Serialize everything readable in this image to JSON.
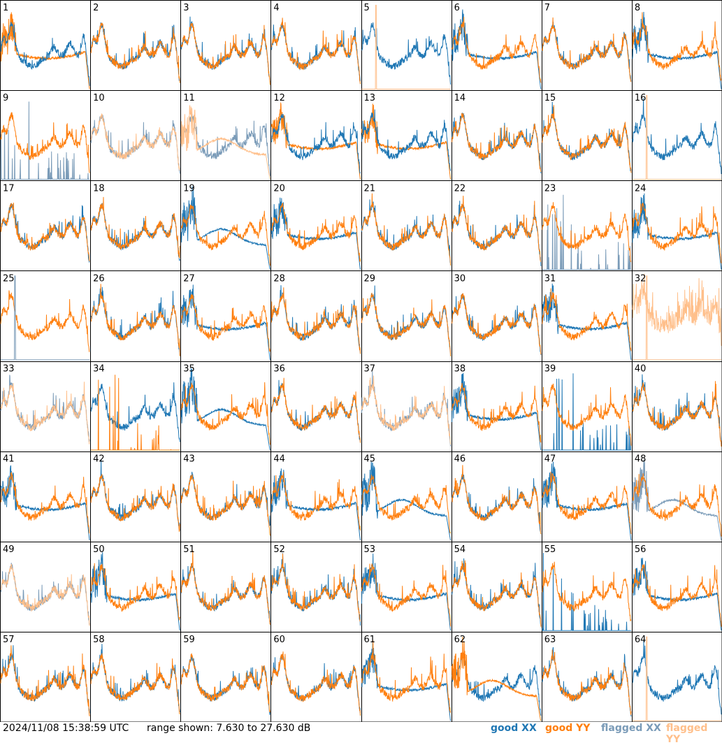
{
  "chart_data": {
    "type": "line",
    "layout": "8x8 grid of small-multiple spectra",
    "panels": [
      "1",
      "2",
      "3",
      "4",
      "5",
      "6",
      "7",
      "8",
      "9",
      "10",
      "11",
      "12",
      "13",
      "14",
      "15",
      "16",
      "17",
      "18",
      "19",
      "20",
      "21",
      "22",
      "23",
      "24",
      "25",
      "26",
      "27",
      "28",
      "29",
      "30",
      "31",
      "32",
      "33",
      "34",
      "35",
      "36",
      "37",
      "38",
      "39",
      "40",
      "41",
      "42",
      "43",
      "44",
      "45",
      "46",
      "47",
      "48",
      "49",
      "50",
      "51",
      "52",
      "53",
      "54",
      "55",
      "56",
      "57",
      "58",
      "59",
      "60",
      "61",
      "62",
      "63",
      "64"
    ],
    "y_units": "dB",
    "ylim": [
      7.63,
      27.63
    ],
    "series": [
      {
        "name": "good XX",
        "color": "#1f77b4"
      },
      {
        "name": "good YY",
        "color": "#ff7f0e"
      },
      {
        "name": "flagged XX",
        "color": "#7a9bb8"
      },
      {
        "name": "flagged YY",
        "color": "#ffbf8a"
      }
    ],
    "panel_profiles": {
      "1": "split-xx",
      "2": "normal",
      "3": "normal",
      "4": "normal",
      "5": "xx-only-spike",
      "6": "split-yy",
      "7": "normal",
      "8": "split-yy",
      "9": "yy-flagxx",
      "10": "flagged-both",
      "11": "flagged-split",
      "12": "split-xx",
      "13": "split-xx",
      "14": "normal",
      "15": "normal",
      "16": "xx-only-spike",
      "17": "normal",
      "18": "normal",
      "19": "split-xx-low",
      "20": "split-yy",
      "21": "normal",
      "22": "normal",
      "23": "yy-flagxx",
      "24": "split-yy",
      "25": "yy-only",
      "26": "normal",
      "27": "split-yy",
      "28": "normal",
      "29": "normal",
      "30": "normal",
      "31": "split-yy",
      "32": "flagged-yy-only",
      "33": "flagged-both",
      "34": "xx-yyspikes",
      "35": "split-xx-low",
      "36": "normal",
      "37": "flagged-both",
      "38": "split-yy-xx-drop",
      "39": "yy-xxspike",
      "40": "normal",
      "41": "split-yy",
      "42": "normal",
      "43": "normal",
      "44": "split-yy",
      "45": "split-xx-low",
      "46": "normal",
      "47": "split-yy",
      "48": "flagged-xx-yy",
      "49": "flagged-both",
      "50": "split-yy",
      "51": "normal",
      "52": "normal",
      "53": "split-yy",
      "54": "normal",
      "55": "yy-xxspike",
      "56": "split-yy",
      "57": "normal",
      "58": "normal",
      "59": "normal",
      "60": "normal",
      "61": "split-yy",
      "62": "split-yy-low",
      "63": "normal",
      "64": "xx-only-spike"
    }
  },
  "footer": {
    "timestamp": "2024/11/08 15:38:59 UTC",
    "range_text": "range shown: 7.630 to 27.630 dB",
    "legend": {
      "good_xx": "good XX",
      "good_yy": "good YY",
      "flagged_xx": "flagged XX",
      "flagged_yy": "flagged YY"
    }
  }
}
